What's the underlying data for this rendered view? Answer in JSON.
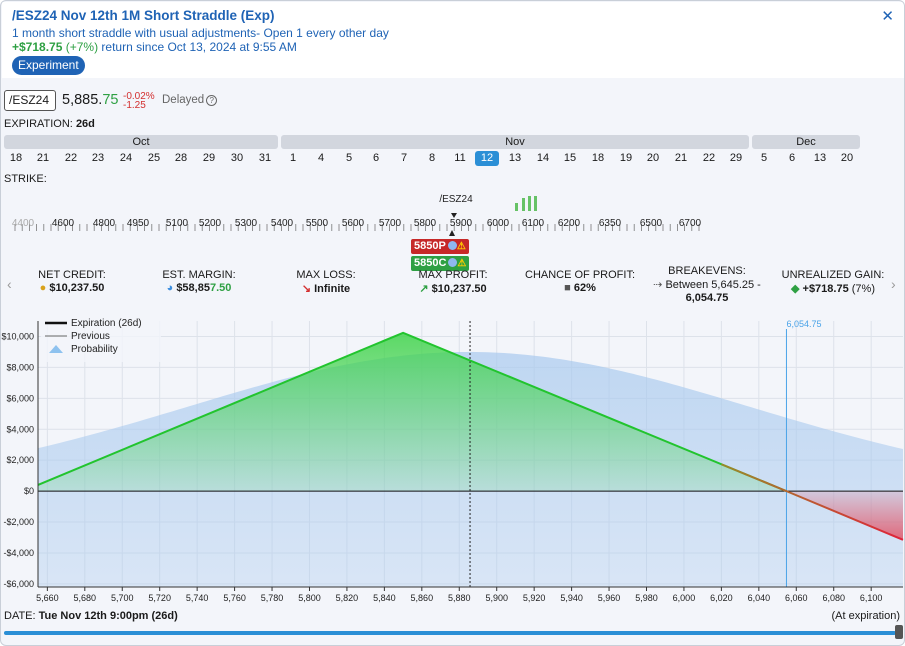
{
  "header": {
    "title": "/ESZ24 Nov 12th 1M Short Straddle (Exp)",
    "description": "1 month short straddle with usual adjustments- Open 1 every other day",
    "return_amount": "+$718.75",
    "return_pct": "(+7%)",
    "return_text": "return since Oct 13, 2024 at 9:55 AM",
    "badge": "Experiment",
    "close_icon": "close-icon"
  },
  "quote": {
    "symbol": "/ESZ24",
    "price_main": "5,885.",
    "price_dec": "75",
    "change_pct": "-0.02%",
    "change_abs": "-1.25",
    "delayed": "Delayed",
    "help_icon": "?"
  },
  "expiration": {
    "label": "EXPIRATION:",
    "value": "26d",
    "months": [
      {
        "name": "Oct"
      },
      {
        "name": "Nov"
      },
      {
        "name": "Dec"
      }
    ],
    "days": [
      "18",
      "21",
      "22",
      "23",
      "24",
      "25",
      "28",
      "29",
      "30",
      "31",
      "1",
      "4",
      "5",
      "6",
      "7",
      "8",
      "11",
      "12",
      "13",
      "14",
      "15",
      "18",
      "19",
      "20",
      "21",
      "22",
      "29",
      "5",
      "6",
      "13",
      "20"
    ],
    "selected_index": 17
  },
  "strike": {
    "label": "STRIKE:",
    "marker_label": "/ESZ24",
    "ticks": [
      "4400",
      "4600",
      "4800",
      "4950",
      "5100",
      "5200",
      "5300",
      "5400",
      "5500",
      "5600",
      "5700",
      "5800",
      "5900",
      "6000",
      "6100",
      "6200",
      "6350",
      "6500",
      "6700"
    ],
    "put_tag": "5850P",
    "call_tag": "5850C"
  },
  "stats": {
    "net_credit": {
      "label": "NET CREDIT:",
      "value": "$10,237.50"
    },
    "est_margin": {
      "label": "EST. MARGIN:",
      "value_a": "$58,85",
      "value_b": "7.50"
    },
    "max_loss": {
      "label": "MAX LOSS:",
      "value": "Infinite"
    },
    "max_profit": {
      "label": "MAX PROFIT:",
      "value": "$10,237.50"
    },
    "chance": {
      "label": "CHANCE OF PROFIT:",
      "value": "62%"
    },
    "breakevens": {
      "label": "BREAKEVENS:",
      "line1": "Between 5,645.25 -",
      "line2": "6,054.75"
    },
    "unrealized": {
      "label": "UNREALIZED GAIN:",
      "value": "+$718.75",
      "pct": "(7%)"
    },
    "left_arrow": "‹",
    "right_arrow": "›"
  },
  "chart_data": {
    "type": "line",
    "legend": [
      "Expiration (26d)",
      "Previous",
      "Probability"
    ],
    "legend_position": "top-left",
    "xlim": [
      5655,
      6117
    ],
    "ylim": [
      -6200,
      11000
    ],
    "x_ticks": [
      5660,
      5680,
      5700,
      5720,
      5740,
      5760,
      5780,
      5800,
      5820,
      5840,
      5860,
      5880,
      5900,
      5920,
      5940,
      5960,
      5980,
      6000,
      6020,
      6040,
      6060,
      6080,
      6100
    ],
    "x_tick_labels": [
      "5,660",
      "5,680",
      "5,700",
      "5,720",
      "5,740",
      "5,760",
      "5,780",
      "5,800",
      "5,820",
      "5,840",
      "5,860",
      "5,880",
      "5,900",
      "5,920",
      "5,940",
      "5,960",
      "5,980",
      "6,000",
      "6,020",
      "6,040",
      "6,060",
      "6,080",
      "6,100"
    ],
    "y_ticks": [
      10000,
      8000,
      6000,
      4000,
      2000,
      0,
      -2000,
      -4000,
      -6000
    ],
    "y_tick_labels": [
      "$10,000",
      "$8,000",
      "$6,000",
      "$4,000",
      "$2,000",
      "$0",
      "-$2,000",
      "-$4,000",
      "-$6,000"
    ],
    "series": [
      {
        "name": "Expiration (26d)",
        "x": [
          5655,
          5850,
          6054.75,
          6117
        ],
        "y": [
          400,
          10237.5,
          0,
          -3150
        ]
      }
    ],
    "current_price": 5885.75,
    "breakeven_marker": {
      "x": 6054.75,
      "label": "6,054.75"
    },
    "probability_peak": 5885,
    "grid": true
  },
  "footer": {
    "date_label": "DATE:",
    "date_value": "Tue Nov 12th 9:00pm (26d)",
    "at_expiration": "(At expiration)"
  },
  "colors": {
    "accent": "#1f63b5",
    "profit": "#2ea043",
    "loss": "#d32f2f",
    "selected": "#2b8fd6"
  }
}
